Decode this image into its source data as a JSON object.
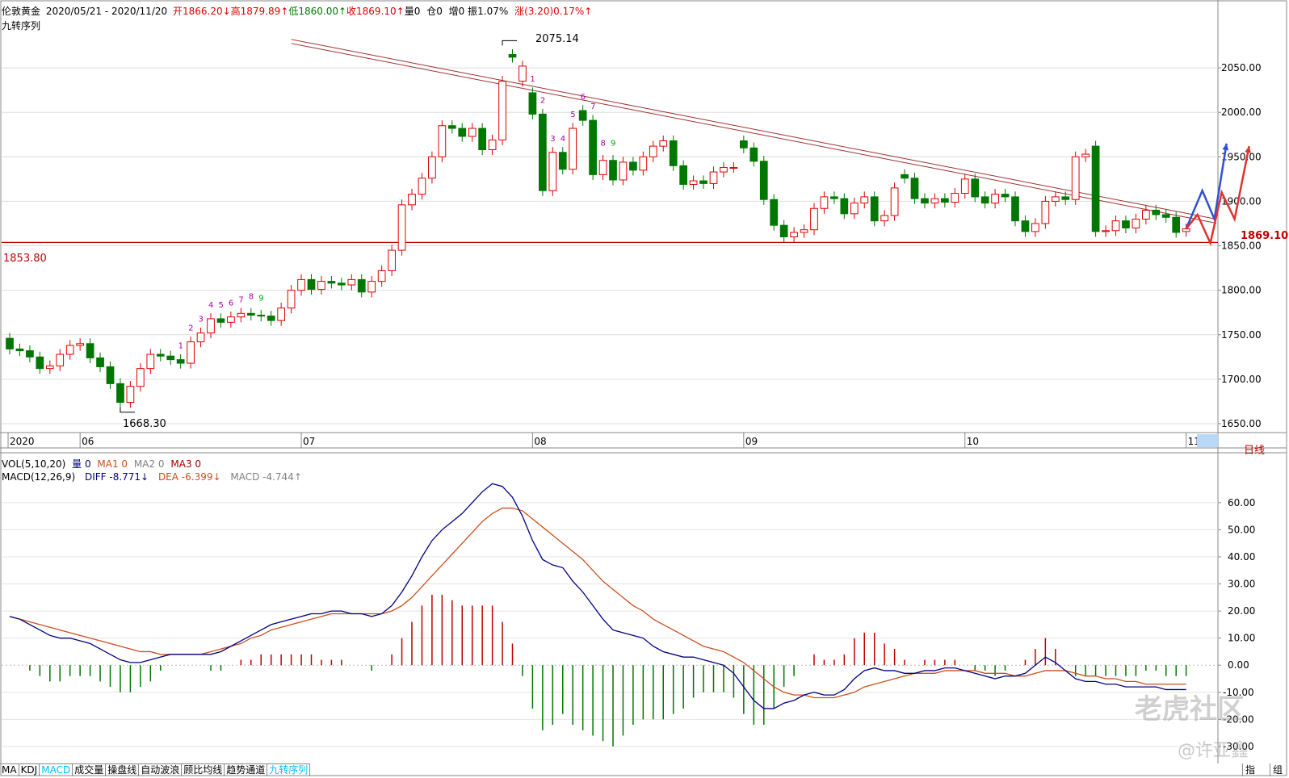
{
  "header": {
    "instrument": "伦敦黄金",
    "date_range": "2020/05/21 - 2020/11/20",
    "open": "开1866.20↓",
    "high": "高1879.89↑",
    "low": "低1860.00↑",
    "close": "收1869.10↑",
    "volume": "量0",
    "position": "仓0",
    "increase": "增0",
    "amplitude": "振1.07%",
    "change": "涨(3.20)0.17%↑",
    "indicator": "九转序列"
  },
  "vol_bar": {
    "label": "VOL(5,10,20)",
    "vol": "量 0",
    "ma1": "MA1 0",
    "ma2": "MA2 0",
    "ma3": "MA3 0"
  },
  "macd_bar": {
    "label": "MACD(12,26,9)",
    "diff": "DIFF -8.771↓",
    "dea": "DEA -6.399↓",
    "macd": "MACD -4.744↑"
  },
  "price_annotations": {
    "high_label": "2075.14",
    "low_label": "1668.30",
    "support_label": "1853.80",
    "last_price": "1869.10"
  },
  "period_label": "日线",
  "watermark": {
    "brand": "老虎社区",
    "author": "@许亚鑫"
  },
  "tabs": [
    "MA",
    "KDJ",
    "MACD",
    "成交量",
    "操盘线",
    "自动波浪",
    "顾比均线",
    "趋势通道",
    "九转序列"
  ],
  "active_tabs": [
    "MACD",
    "九转序列"
  ],
  "corner_buttons": [
    "指",
    "组"
  ],
  "colors": {
    "up": "#e00000",
    "down": "#007700",
    "diff": "#000080",
    "dea": "#c8501e",
    "accent": "#00bfff"
  },
  "chart_data": [
    {
      "type": "candlestick",
      "title": "伦敦黄金",
      "y_axis_ticks": [
        1650,
        1700,
        1750,
        1800,
        1850,
        1900,
        1950,
        2000,
        2050
      ],
      "ylim": [
        1640,
        2090
      ],
      "x_axis_ticks": [
        "2020",
        "06",
        "07",
        "08",
        "09",
        "10",
        "11"
      ],
      "support_level": 1853.8,
      "resistance_line": {
        "from_date": "2020/06/30",
        "from": 2082,
        "to_date": "2020/11/20",
        "to": 1880
      },
      "annotations": [
        {
          "label": "2075.14",
          "value": 2075.14,
          "date": "2020/08/06"
        },
        {
          "label": "1668.30",
          "value": 1668.3,
          "date": "2020/06/05"
        },
        {
          "label": "1869.10",
          "value": 1869.1,
          "date": "2020/11/20"
        }
      ],
      "td_sequential": [
        {
          "day": 52,
          "label": "1",
          "color": "#aa00aa"
        },
        {
          "day": 53,
          "label": "2",
          "color": "#aa00aa"
        },
        {
          "day": 54,
          "label": "3",
          "color": "#aa00aa"
        },
        {
          "day": 55,
          "label": "4",
          "color": "#aa00aa"
        },
        {
          "day": 56,
          "label": "5",
          "color": "#aa00aa"
        },
        {
          "day": 57,
          "label": "6",
          "color": "#aa00aa"
        },
        {
          "day": 58,
          "label": "7",
          "color": "#aa00aa"
        },
        {
          "day": 59,
          "label": "8",
          "color": "#aa00aa"
        },
        {
          "day": 60,
          "label": "9",
          "color": "#00a000"
        },
        {
          "day": 17,
          "label": "1",
          "color": "#aa00aa"
        },
        {
          "day": 18,
          "label": "2",
          "color": "#aa00aa"
        },
        {
          "day": 19,
          "label": "3",
          "color": "#aa00aa"
        },
        {
          "day": 20,
          "label": "4",
          "color": "#aa00aa"
        },
        {
          "day": 21,
          "label": "5",
          "color": "#aa00aa"
        },
        {
          "day": 22,
          "label": "6",
          "color": "#aa00aa"
        },
        {
          "day": 23,
          "label": "7",
          "color": "#aa00aa"
        },
        {
          "day": 24,
          "label": "8",
          "color": "#aa00aa"
        },
        {
          "day": 25,
          "label": "9",
          "color": "#00a000"
        }
      ],
      "month_index": {
        "06": 7,
        "07": 29,
        "08": 52,
        "09": 73,
        "10": 95,
        "11": 117
      },
      "closes": [
        1734,
        1732,
        1725,
        1712,
        1715,
        1728,
        1738,
        1740,
        1724,
        1714,
        1695,
        1674,
        1692,
        1712,
        1728,
        1726,
        1722,
        1718,
        1742,
        1752,
        1768,
        1764,
        1770,
        1774,
        1772,
        1771,
        1766,
        1780,
        1800,
        1812,
        1801,
        1810,
        1808,
        1806,
        1812,
        1798,
        1810,
        1822,
        1845,
        1896,
        1908,
        1926,
        1950,
        1985,
        1982,
        1973,
        1982,
        1958,
        1969,
        2035,
        2062,
        2052,
        1998,
        1912,
        1955,
        1936,
        1982,
        1991,
        1930,
        1946,
        1924,
        1944,
        1935,
        1950,
        1962,
        1968,
        1940,
        1919,
        1923,
        1920,
        1933,
        1938,
        1938,
        1960,
        1945,
        1902,
        1873,
        1860,
        1865,
        1868,
        1892,
        1905,
        1903,
        1886,
        1898,
        1905,
        1878,
        1884,
        1915,
        1926,
        1903,
        1898,
        1903,
        1899,
        1909,
        1925,
        1905,
        1898,
        1908,
        1905,
        1878,
        1866,
        1875,
        1900,
        1905,
        1902,
        1950,
        1953,
        1866,
        1867,
        1878,
        1870,
        1880,
        1890,
        1885,
        1882,
        1865,
        1869
      ],
      "opens": [
        1746,
        1734,
        1732,
        1725,
        1712,
        1715,
        1728,
        1738,
        1740,
        1724,
        1714,
        1695,
        1674,
        1692,
        1712,
        1728,
        1726,
        1722,
        1718,
        1742,
        1752,
        1768,
        1764,
        1770,
        1774,
        1772,
        1771,
        1766,
        1780,
        1800,
        1812,
        1801,
        1810,
        1808,
        1806,
        1812,
        1798,
        1810,
        1822,
        1845,
        1896,
        1908,
        1926,
        1950,
        1985,
        1982,
        1973,
        1982,
        1958,
        1969,
        2065,
        2035,
        2022,
        1998,
        1912,
        1955,
        1936,
        2002,
        1991,
        1930,
        1946,
        1924,
        1944,
        1935,
        1950,
        1962,
        1968,
        1940,
        1919,
        1923,
        1920,
        1933,
        1938,
        1968,
        1960,
        1945,
        1902,
        1873,
        1860,
        1865,
        1868,
        1892,
        1905,
        1903,
        1886,
        1898,
        1905,
        1878,
        1884,
        1930,
        1926,
        1903,
        1898,
        1903,
        1899,
        1909,
        1925,
        1905,
        1898,
        1908,
        1905,
        1878,
        1866,
        1875,
        1900,
        1905,
        1902,
        1950,
        1962,
        1866,
        1867,
        1878,
        1870,
        1880,
        1890,
        1885,
        1882,
        1866
      ]
    },
    {
      "type": "line",
      "title": "MACD(12,26,9)",
      "y_axis_ticks": [
        -30,
        -20,
        -10,
        0,
        10,
        20,
        30,
        40,
        50,
        60
      ],
      "ylim": [
        -33,
        68
      ],
      "series": [
        {
          "name": "DIFF",
          "values": [
            18,
            17,
            15,
            13,
            11,
            10,
            10,
            9,
            8,
            6,
            4,
            2,
            1,
            1,
            2,
            3,
            4,
            4,
            4,
            4,
            4,
            5,
            7,
            9,
            11,
            13,
            15,
            16,
            17,
            18,
            19,
            19,
            20,
            20,
            19,
            19,
            18,
            19,
            22,
            27,
            33,
            40,
            46,
            50,
            53,
            56,
            60,
            64,
            67,
            66,
            62,
            55,
            46,
            39,
            37,
            36,
            31,
            27,
            22,
            17,
            13,
            12,
            11,
            10,
            7,
            5,
            4,
            3,
            3,
            2,
            1,
            0,
            -3,
            -8,
            -13,
            -16,
            -16,
            -14,
            -13,
            -11,
            -10,
            -11,
            -11,
            -9,
            -5,
            -2,
            -1,
            -2,
            -2,
            -3,
            -3,
            -2,
            -2,
            -1,
            -1,
            -2,
            -3,
            -4,
            -5,
            -4,
            -4,
            -3,
            0,
            3,
            1,
            -2,
            -5,
            -6,
            -6,
            -7,
            -7,
            -8,
            -8,
            -8,
            -8,
            -9,
            -9,
            -9
          ]
        },
        {
          "name": "DEA",
          "values": [
            18,
            17,
            16,
            15,
            14,
            13,
            12,
            11,
            10,
            9,
            8,
            7,
            6,
            5,
            5,
            4,
            4,
            4,
            4,
            4,
            5,
            6,
            7,
            8,
            10,
            11,
            13,
            14,
            15,
            16,
            17,
            18,
            19,
            19,
            19,
            19,
            19,
            19,
            20,
            22,
            25,
            29,
            33,
            37,
            41,
            45,
            49,
            53,
            56,
            58,
            58,
            57,
            54,
            51,
            48,
            45,
            42,
            39,
            35,
            31,
            28,
            25,
            22,
            20,
            17,
            15,
            13,
            11,
            9,
            7,
            6,
            5,
            3,
            1,
            -2,
            -5,
            -8,
            -10,
            -11,
            -11,
            -12,
            -12,
            -12,
            -11,
            -10,
            -8,
            -7,
            -6,
            -5,
            -4,
            -3,
            -3,
            -3,
            -2,
            -2,
            -2,
            -2,
            -3,
            -3,
            -3,
            -4,
            -4,
            -3,
            -2,
            -2,
            -2,
            -3,
            -4,
            -4,
            -5,
            -5,
            -6,
            -6,
            -7,
            -7,
            -7,
            -7,
            -7
          ]
        }
      ]
    }
  ]
}
